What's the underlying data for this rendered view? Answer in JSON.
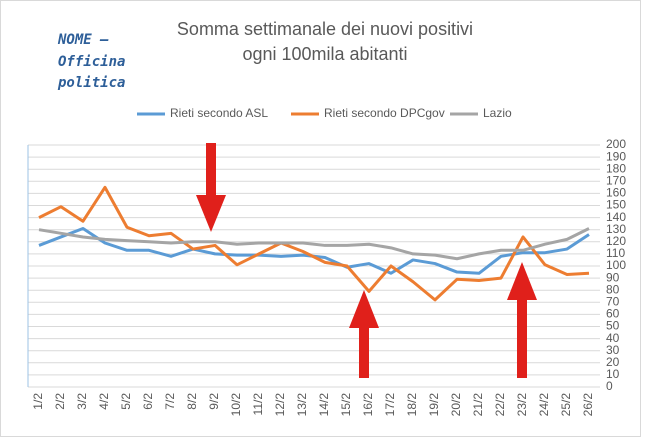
{
  "chart_data": {
    "type": "line",
    "title": [
      "Somma settimanale dei nuovi positivi",
      "ogni 100mila abitanti"
    ],
    "annotations": [
      "NOME –",
      "Officina",
      "politica"
    ],
    "categories": [
      "1/2",
      "2/2",
      "3/2",
      "4/2",
      "5/2",
      "6/2",
      "7/2",
      "8/2",
      "9/2",
      "10/2",
      "11/2",
      "12/2",
      "13/2",
      "14/2",
      "15/2",
      "16/2",
      "17/2",
      "18/2",
      "19/2",
      "20/2",
      "21/2",
      "22/2",
      "23/2",
      "24/2",
      "25/2",
      "26/2"
    ],
    "series": [
      {
        "name": "Rieti secondo ASL",
        "color": "#5b9bd5",
        "values": [
          117,
          124,
          131,
          119,
          113,
          113,
          108,
          114,
          110,
          109,
          109,
          108,
          109,
          107,
          99,
          102,
          94,
          105,
          102,
          95,
          94,
          108,
          111,
          111,
          114,
          126
        ]
      },
      {
        "name": "Rieti secondo DPCgov",
        "color": "#ed7d31",
        "values": [
          140,
          149,
          137,
          165,
          132,
          125,
          127,
          114,
          117,
          101,
          110,
          119,
          112,
          103,
          100,
          79,
          100,
          87,
          72,
          89,
          88,
          90,
          124,
          101,
          93,
          94
        ]
      },
      {
        "name": "Lazio",
        "color": "#a5a5a5",
        "values": [
          130,
          127,
          124,
          122,
          121,
          120,
          119,
          120,
          120,
          118,
          119,
          119,
          119,
          117,
          117,
          118,
          115,
          110,
          109,
          106,
          110,
          113,
          113,
          118,
          122,
          131
        ]
      }
    ],
    "ylim": [
      0,
      200
    ],
    "yticks": [
      0,
      10,
      20,
      30,
      40,
      50,
      60,
      70,
      80,
      90,
      100,
      110,
      120,
      130,
      140,
      150,
      160,
      170,
      180,
      190,
      200
    ],
    "grid": true,
    "legend": "top"
  }
}
